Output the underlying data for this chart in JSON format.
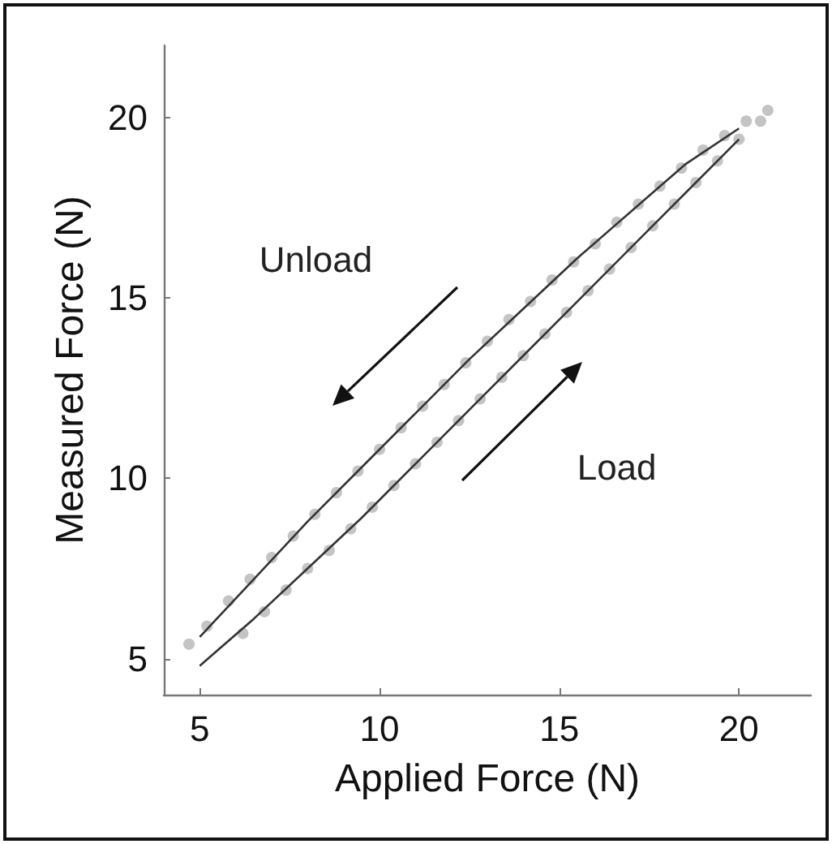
{
  "chart_data": {
    "type": "scatter",
    "xlabel": "Applied Force (N)",
    "ylabel": "Measured Force (N)",
    "xlim": [
      4,
      22
    ],
    "ylim": [
      4,
      22
    ],
    "xticks": [
      5,
      10,
      15,
      20
    ],
    "yticks": [
      5,
      10,
      15,
      20
    ],
    "grid": false,
    "marker": "circle",
    "annotations": [
      "Unload",
      "Load"
    ],
    "series": [
      {
        "color": "#b5b5b5",
        "x": [
          4.7,
          5.2,
          5.8,
          6.4,
          7.0,
          7.6,
          8.2,
          8.8,
          9.4,
          10,
          10.6,
          11.2,
          11.8,
          12.4,
          13,
          13.6,
          14.2,
          14.8,
          15.4,
          16,
          16.6,
          17.2,
          17.8,
          18.4,
          19,
          19.6,
          20.2,
          20.8
        ],
        "values": [
          5.4,
          5.9,
          6.6,
          7.2,
          7.8,
          8.4,
          9.0,
          9.6,
          10.2,
          10.8,
          11.4,
          12.0,
          12.6,
          13.2,
          13.8,
          14.4,
          14.9,
          15.5,
          16.0,
          16.5,
          17.1,
          17.6,
          18.1,
          18.6,
          19.1,
          19.5,
          19.9,
          20.2
        ]
      },
      {
        "color": "#b5b5b5",
        "x": [
          6.2,
          6.8,
          7.4,
          8.0,
          8.6,
          9.2,
          9.8,
          10.4,
          11,
          11.6,
          12.2,
          12.8,
          13.4,
          14,
          14.6,
          15.2,
          15.8,
          16.4,
          17,
          17.6,
          18.2,
          18.8,
          19.4,
          20,
          20.6
        ],
        "values": [
          5.7,
          6.3,
          6.9,
          7.5,
          8.0,
          8.6,
          9.2,
          9.8,
          10.4,
          11.0,
          11.6,
          12.2,
          12.8,
          13.4,
          14.0,
          14.6,
          15.2,
          15.8,
          16.4,
          17.0,
          17.6,
          18.2,
          18.8,
          19.4,
          19.9
        ]
      },
      {
        "type": "line",
        "color": "#333333",
        "marker": "none",
        "line_style": "solid",
        "x": [
          5,
          6.5,
          8,
          9.5,
          11,
          12.5,
          14,
          15.5,
          17,
          18.5,
          20
        ],
        "values": [
          5.6,
          7.2,
          8.8,
          10.3,
          11.8,
          13.3,
          14.7,
          16.1,
          17.4,
          18.7,
          19.7
        ]
      },
      {
        "type": "line",
        "color": "#333333",
        "marker": "none",
        "line_style": "solid",
        "x": [
          5,
          6.5,
          8,
          9.5,
          11,
          12.5,
          14,
          15.5,
          17,
          18.5,
          20
        ],
        "values": [
          4.8,
          6.1,
          7.5,
          8.9,
          10.4,
          11.9,
          13.4,
          14.9,
          16.4,
          17.9,
          19.4
        ]
      }
    ]
  }
}
